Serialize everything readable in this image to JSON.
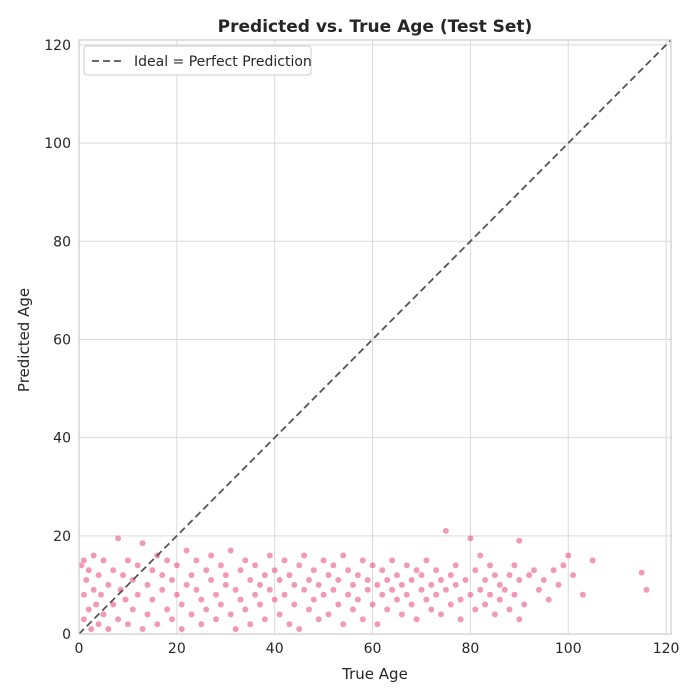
{
  "chart_data": {
    "type": "scatter",
    "title": "Predicted vs. True Age (Test Set)",
    "xlabel": "True Age",
    "ylabel": "Predicted Age",
    "xlim": [
      0,
      121
    ],
    "ylim": [
      0,
      121
    ],
    "xticks": [
      0,
      20,
      40,
      60,
      80,
      100,
      120
    ],
    "yticks": [
      0,
      20,
      40,
      60,
      80,
      100,
      120
    ],
    "grid": true,
    "legend_position": "top-left",
    "legend": [
      {
        "label": "Ideal = Perfect Prediction",
        "style": "dashed",
        "color": "#555555"
      }
    ],
    "ideal_line": {
      "from": [
        0,
        0
      ],
      "to": [
        121,
        121
      ]
    },
    "point_color": "#e8467f",
    "series": [
      {
        "points": [
          [
            0.5,
            14
          ],
          [
            1,
            3
          ],
          [
            1,
            8
          ],
          [
            1,
            15
          ],
          [
            1.5,
            11
          ],
          [
            2,
            5
          ],
          [
            2,
            13
          ],
          [
            2.5,
            1
          ],
          [
            3,
            9
          ],
          [
            3,
            16
          ],
          [
            3.5,
            6
          ],
          [
            4,
            2
          ],
          [
            4,
            12
          ],
          [
            4.5,
            8
          ],
          [
            5,
            15
          ],
          [
            5,
            4
          ],
          [
            6,
            10
          ],
          [
            6,
            1
          ],
          [
            7,
            13
          ],
          [
            7,
            6
          ],
          [
            8,
            19.5
          ],
          [
            8,
            3
          ],
          [
            8.5,
            9
          ],
          [
            9,
            12
          ],
          [
            9.5,
            7
          ],
          [
            10,
            15
          ],
          [
            10,
            2
          ],
          [
            11,
            11
          ],
          [
            11,
            5
          ],
          [
            12,
            8
          ],
          [
            12,
            14
          ],
          [
            13,
            18.5
          ],
          [
            13,
            1
          ],
          [
            14,
            10
          ],
          [
            14,
            4
          ],
          [
            15,
            13
          ],
          [
            15,
            7
          ],
          [
            16,
            16
          ],
          [
            16,
            2
          ],
          [
            17,
            9
          ],
          [
            17,
            12
          ],
          [
            18,
            5
          ],
          [
            18,
            15
          ],
          [
            19,
            11
          ],
          [
            19,
            3
          ],
          [
            20,
            8
          ],
          [
            20,
            14
          ],
          [
            21,
            6
          ],
          [
            21,
            1
          ],
          [
            22,
            10
          ],
          [
            22,
            17
          ],
          [
            23,
            4
          ],
          [
            23,
            12
          ],
          [
            24,
            9
          ],
          [
            24,
            15
          ],
          [
            25,
            7
          ],
          [
            25,
            2
          ],
          [
            26,
            13
          ],
          [
            26,
            5
          ],
          [
            27,
            11
          ],
          [
            27,
            16
          ],
          [
            28,
            8
          ],
          [
            28,
            3
          ],
          [
            29,
            14
          ],
          [
            29,
            6
          ],
          [
            30,
            10
          ],
          [
            30,
            12
          ],
          [
            31,
            4
          ],
          [
            31,
            17
          ],
          [
            32,
            9
          ],
          [
            32,
            1
          ],
          [
            33,
            13
          ],
          [
            33,
            7
          ],
          [
            34,
            15
          ],
          [
            34,
            5
          ],
          [
            35,
            11
          ],
          [
            35,
            2
          ],
          [
            36,
            8
          ],
          [
            36,
            14
          ],
          [
            37,
            6
          ],
          [
            37,
            10
          ],
          [
            38,
            12
          ],
          [
            38,
            3
          ],
          [
            39,
            16
          ],
          [
            39,
            9
          ],
          [
            40,
            7
          ],
          [
            40,
            13
          ],
          [
            41,
            4
          ],
          [
            41,
            11
          ],
          [
            42,
            15
          ],
          [
            42,
            8
          ],
          [
            43,
            2
          ],
          [
            43,
            12
          ],
          [
            44,
            10
          ],
          [
            44,
            6
          ],
          [
            45,
            14
          ],
          [
            45,
            1
          ],
          [
            46,
            9
          ],
          [
            46,
            16
          ],
          [
            47,
            5
          ],
          [
            47,
            11
          ],
          [
            48,
            13
          ],
          [
            48,
            7
          ],
          [
            49,
            3
          ],
          [
            49,
            10
          ],
          [
            50,
            15
          ],
          [
            50,
            8
          ],
          [
            51,
            12
          ],
          [
            51,
            4
          ],
          [
            52,
            9
          ],
          [
            52,
            14
          ],
          [
            53,
            6
          ],
          [
            53,
            11
          ],
          [
            54,
            16
          ],
          [
            54,
            2
          ],
          [
            55,
            8
          ],
          [
            55,
            13
          ],
          [
            56,
            10
          ],
          [
            56,
            5
          ],
          [
            57,
            12
          ],
          [
            57,
            7
          ],
          [
            58,
            15
          ],
          [
            58,
            3
          ],
          [
            59,
            9
          ],
          [
            59,
            11
          ],
          [
            60,
            6
          ],
          [
            60,
            14
          ],
          [
            61,
            10
          ],
          [
            61,
            2
          ],
          [
            62,
            13
          ],
          [
            62,
            8
          ],
          [
            63,
            5
          ],
          [
            63,
            11
          ],
          [
            64,
            9
          ],
          [
            64,
            15
          ],
          [
            65,
            7
          ],
          [
            65,
            12
          ],
          [
            66,
            4
          ],
          [
            66,
            10
          ],
          [
            67,
            14
          ],
          [
            67,
            8
          ],
          [
            68,
            6
          ],
          [
            68,
            11
          ],
          [
            69,
            13
          ],
          [
            69,
            3
          ],
          [
            70,
            9
          ],
          [
            70,
            12
          ],
          [
            71,
            7
          ],
          [
            71,
            15
          ],
          [
            72,
            10
          ],
          [
            72,
            5
          ],
          [
            73,
            13
          ],
          [
            73,
            8
          ],
          [
            74,
            11
          ],
          [
            74,
            4
          ],
          [
            75,
            21
          ],
          [
            75,
            9
          ],
          [
            76,
            12
          ],
          [
            76,
            6
          ],
          [
            77,
            14
          ],
          [
            77,
            10
          ],
          [
            78,
            7
          ],
          [
            78,
            3
          ],
          [
            79,
            11
          ],
          [
            80,
            19.5
          ],
          [
            80,
            8
          ],
          [
            81,
            13
          ],
          [
            81,
            5
          ],
          [
            82,
            9
          ],
          [
            82,
            16
          ],
          [
            83,
            11
          ],
          [
            83,
            6
          ],
          [
            84,
            14
          ],
          [
            84,
            8
          ],
          [
            85,
            12
          ],
          [
            85,
            4
          ],
          [
            86,
            10
          ],
          [
            86,
            7
          ],
          [
            87,
            9
          ],
          [
            88,
            12
          ],
          [
            88,
            5
          ],
          [
            89,
            14
          ],
          [
            89,
            8
          ],
          [
            90,
            19
          ],
          [
            90,
            11
          ],
          [
            90,
            3
          ],
          [
            91,
            6
          ],
          [
            92,
            12
          ],
          [
            93,
            13
          ],
          [
            94,
            9
          ],
          [
            95,
            11
          ],
          [
            96,
            7
          ],
          [
            97,
            13
          ],
          [
            98,
            10
          ],
          [
            99,
            14
          ],
          [
            100,
            16
          ],
          [
            101,
            12
          ],
          [
            103,
            8
          ],
          [
            105,
            15
          ],
          [
            115,
            12.5
          ],
          [
            116,
            9
          ]
        ]
      }
    ]
  }
}
